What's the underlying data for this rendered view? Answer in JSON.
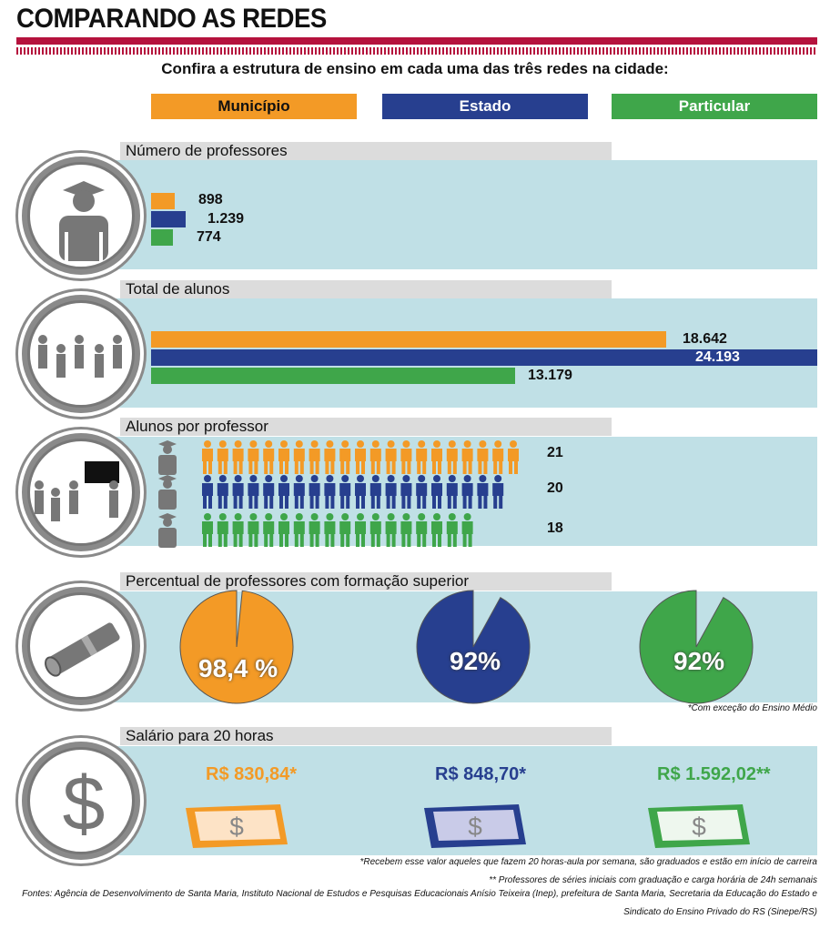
{
  "header": {
    "title": "COMPARANDO AS REDES",
    "subtitle": "Confira a estrutura de ensino em cada uma das três redes na cidade:"
  },
  "legend": {
    "municipio": "Município",
    "estado": "Estado",
    "particular": "Particular"
  },
  "colors": {
    "municipio": "#f39a26",
    "estado": "#273f8f",
    "particular": "#3fa64a",
    "accent": "#b5123d"
  },
  "sections": {
    "professores": {
      "title": "Número de professores",
      "values": [
        "898",
        "1.239",
        "774"
      ]
    },
    "alunos": {
      "title": "Total de alunos",
      "values": [
        "18.642",
        "24.193",
        "13.179"
      ]
    },
    "alunos_por_professor": {
      "title": "Alunos por professor",
      "values": [
        "21",
        "20",
        "18"
      ]
    },
    "formacao": {
      "title": "Percentual de professores com formação superior",
      "values": [
        "98,4 %",
        "92%",
        "92%"
      ],
      "note": "*Com exceção do Ensino Médio"
    },
    "salario": {
      "title": "Salário para 20 horas",
      "values": [
        "R$ 830,84*",
        "R$ 848,70*",
        "R$ 1.592,02**"
      ]
    }
  },
  "chart_data": [
    {
      "type": "bar",
      "title": "Número de professores",
      "categories": [
        "Município",
        "Estado",
        "Particular"
      ],
      "values": [
        898,
        1239,
        774
      ]
    },
    {
      "type": "bar",
      "title": "Total de alunos",
      "categories": [
        "Município",
        "Estado",
        "Particular"
      ],
      "values": [
        18642,
        24193,
        13179
      ]
    },
    {
      "type": "bar",
      "title": "Alunos por professor",
      "categories": [
        "Município",
        "Estado",
        "Particular"
      ],
      "values": [
        21,
        20,
        18
      ]
    },
    {
      "type": "pie",
      "title": "Percentual de professores com formação superior",
      "categories": [
        "Município",
        "Estado",
        "Particular"
      ],
      "values": [
        98.4,
        92,
        92
      ]
    }
  ],
  "footnotes": {
    "note1": "*Recebem esse valor aqueles que fazem 20 horas-aula por semana, são graduados e estão em início de carreira",
    "note2": "** Professores de séries iniciais com graduação e carga horária de 24h semanais",
    "fontes1": "Fontes: Agência de Desenvolvimento de Santa Maria, Instituto Nacional de Estudos e Pesquisas Educacionais Anísio Teixeira (Inep), prefeitura de Santa Maria, Secretaria da Educação do Estado e",
    "fontes2": "Sindicato do Ensino Privado do RS (Sinepe/RS)"
  }
}
